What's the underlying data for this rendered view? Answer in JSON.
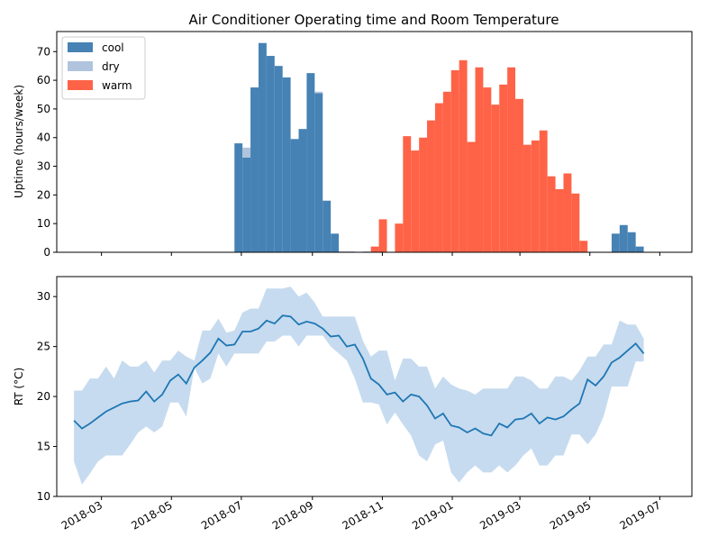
{
  "title": "Air Conditioner Operating time and Room Temperature",
  "x_ticks": [
    {
      "label": "2018-03",
      "date": "2018-03-01"
    },
    {
      "label": "2018-05",
      "date": "2018-05-01"
    },
    {
      "label": "2018-07",
      "date": "2018-07-01"
    },
    {
      "label": "2018-09",
      "date": "2018-09-01"
    },
    {
      "label": "2018-11",
      "date": "2018-11-01"
    },
    {
      "label": "2019-01",
      "date": "2019-01-01"
    },
    {
      "label": "2019-03",
      "date": "2019-03-01"
    },
    {
      "label": "2019-05",
      "date": "2019-05-01"
    },
    {
      "label": "2019-07",
      "date": "2019-07-01"
    }
  ],
  "colors": {
    "cool": "#4682b4",
    "dry": "#b0c4de",
    "warm": "#ff6347",
    "rt_line": "#1f77b4",
    "rt_band": "#c6dbef"
  },
  "chart_data": [
    {
      "type": "bar",
      "ylabel": "Uptime (hours/week)",
      "ylim": [
        0,
        77
      ],
      "yticks": [
        0,
        10,
        20,
        30,
        40,
        50,
        60,
        70
      ],
      "xlim": [
        "2018-01-21",
        "2019-07-29"
      ],
      "legend": {
        "position": "top-left",
        "entries": [
          "cool",
          "dry",
          "warm"
        ]
      },
      "week_starts": [
        "2018-06-25",
        "2018-07-02",
        "2018-07-09",
        "2018-07-16",
        "2018-07-23",
        "2018-07-30",
        "2018-08-06",
        "2018-08-13",
        "2018-08-20",
        "2018-08-27",
        "2018-09-03",
        "2018-09-10",
        "2018-09-17",
        "2018-09-24",
        "2018-10-01",
        "2018-10-08",
        "2018-10-15",
        "2018-10-22",
        "2018-10-29",
        "2018-11-05",
        "2018-11-12",
        "2018-11-19",
        "2018-11-26",
        "2018-12-03",
        "2018-12-10",
        "2018-12-17",
        "2018-12-24",
        "2018-12-31",
        "2019-01-07",
        "2019-01-14",
        "2019-01-21",
        "2019-01-28",
        "2019-02-04",
        "2019-02-11",
        "2019-02-18",
        "2019-02-25",
        "2019-03-04",
        "2019-03-11",
        "2019-03-18",
        "2019-03-25",
        "2019-04-01",
        "2019-04-08",
        "2019-04-15",
        "2019-04-22",
        "2019-04-29",
        "2019-05-06",
        "2019-05-13",
        "2019-05-20",
        "2019-05-27",
        "2019-06-03",
        "2019-06-10"
      ],
      "series": [
        {
          "name": "cool",
          "values": [
            38,
            33,
            57.5,
            73,
            68.5,
            65,
            61,
            39.5,
            43,
            62.5,
            55.5,
            18,
            6.5,
            0,
            0,
            0,
            0,
            0,
            0,
            0,
            0,
            0,
            0,
            0,
            0,
            0,
            0,
            0,
            0,
            0,
            0,
            0,
            0,
            0,
            0,
            0,
            0,
            0,
            0,
            0,
            0,
            0,
            0,
            0,
            0,
            0,
            0,
            6.5,
            9.5,
            7,
            2
          ]
        },
        {
          "name": "dry",
          "values": [
            0,
            3.5,
            0,
            0,
            0,
            0,
            0,
            0,
            0,
            0,
            0.5,
            0,
            0,
            0.3,
            0.3,
            0,
            0.3,
            0,
            0,
            0,
            0,
            0,
            0,
            0,
            0,
            0,
            0,
            0,
            0,
            0,
            0,
            0,
            0,
            0,
            0,
            0,
            0,
            0,
            0,
            0,
            0,
            0,
            0,
            0,
            0,
            0,
            0,
            0,
            0,
            0,
            0
          ]
        },
        {
          "name": "warm",
          "values": [
            0,
            0,
            0,
            0,
            0,
            0,
            0,
            0,
            0,
            0,
            0,
            0,
            0,
            0,
            0,
            0,
            0,
            2,
            11.5,
            0,
            10,
            40.5,
            35.5,
            40,
            46,
            52,
            56,
            63.5,
            67,
            38.5,
            64.5,
            57.5,
            51.5,
            58.5,
            64.5,
            53.5,
            37.5,
            39,
            42.5,
            26.5,
            22,
            27.5,
            20.5,
            4,
            0,
            0,
            0,
            0,
            0,
            0,
            0
          ]
        }
      ]
    },
    {
      "type": "line",
      "ylabel": "RT (°C)",
      "ylim": [
        10,
        32
      ],
      "yticks": [
        10,
        15,
        20,
        25,
        30
      ],
      "xlim": [
        "2018-01-21",
        "2019-07-29"
      ],
      "x": [
        "2018-02-05",
        "2018-02-12",
        "2018-02-19",
        "2018-02-26",
        "2018-03-05",
        "2018-03-12",
        "2018-03-19",
        "2018-03-26",
        "2018-04-02",
        "2018-04-09",
        "2018-04-16",
        "2018-04-23",
        "2018-04-30",
        "2018-05-07",
        "2018-05-14",
        "2018-05-21",
        "2018-05-28",
        "2018-06-04",
        "2018-06-11",
        "2018-06-18",
        "2018-06-25",
        "2018-07-02",
        "2018-07-09",
        "2018-07-16",
        "2018-07-23",
        "2018-07-30",
        "2018-08-06",
        "2018-08-13",
        "2018-08-20",
        "2018-08-27",
        "2018-09-03",
        "2018-09-10",
        "2018-09-17",
        "2018-09-24",
        "2018-10-01",
        "2018-10-08",
        "2018-10-15",
        "2018-10-22",
        "2018-10-29",
        "2018-11-05",
        "2018-11-12",
        "2018-11-19",
        "2018-11-26",
        "2018-12-03",
        "2018-12-10",
        "2018-12-17",
        "2018-12-24",
        "2018-12-31",
        "2019-01-07",
        "2019-01-14",
        "2019-01-21",
        "2019-01-28",
        "2019-02-04",
        "2019-02-11",
        "2019-02-18",
        "2019-02-25",
        "2019-03-04",
        "2019-03-11",
        "2019-03-18",
        "2019-03-25",
        "2019-04-01",
        "2019-04-08",
        "2019-04-15",
        "2019-04-22",
        "2019-04-29",
        "2019-05-06",
        "2019-05-13",
        "2019-05-20",
        "2019-05-27",
        "2019-06-03",
        "2019-06-10",
        "2019-06-17"
      ],
      "series": [
        {
          "name": "mean",
          "values": [
            17.6,
            16.8,
            17.3,
            17.9,
            18.5,
            18.9,
            19.3,
            19.5,
            19.6,
            20.5,
            19.5,
            20.2,
            21.6,
            22.2,
            21.3,
            22.9,
            23.6,
            24.4,
            25.8,
            25.1,
            25.2,
            26.5,
            26.5,
            26.8,
            27.6,
            27.3,
            28.1,
            28.0,
            27.2,
            27.5,
            27.3,
            26.8,
            26.0,
            26.1,
            25.0,
            25.2,
            23.8,
            21.8,
            21.2,
            20.2,
            20.4,
            19.5,
            20.2,
            20.0,
            19.1,
            17.8,
            18.3,
            17.1,
            16.9,
            16.4,
            16.8,
            16.3,
            16.1,
            17.3,
            16.9,
            17.7,
            17.8,
            18.3,
            17.3,
            17.9,
            17.7,
            18.0,
            18.7,
            19.3,
            21.7,
            21.1,
            22.0,
            23.4,
            23.9,
            24.6,
            25.3,
            24.3
          ]
        },
        {
          "name": "max",
          "values": [
            20.6,
            20.6,
            21.8,
            21.8,
            23.0,
            21.8,
            23.6,
            23.0,
            23.0,
            23.6,
            22.4,
            23.6,
            23.6,
            24.6,
            24.0,
            23.6,
            26.6,
            26.6,
            27.8,
            26.4,
            26.6,
            28.4,
            28.8,
            28.8,
            30.8,
            30.8,
            30.8,
            31.0,
            30.0,
            30.4,
            29.4,
            28.0,
            28.0,
            28.0,
            28.0,
            28.0,
            25.6,
            24.0,
            24.6,
            24.6,
            21.6,
            23.8,
            23.8,
            23.0,
            23.0,
            20.8,
            22.0,
            21.2,
            20.8,
            20.6,
            20.2,
            20.8,
            20.8,
            20.8,
            20.8,
            22.0,
            22.0,
            21.6,
            20.8,
            20.8,
            22.0,
            22.0,
            21.6,
            22.6,
            24.0,
            24.0,
            25.2,
            25.2,
            27.6,
            27.2,
            27.2,
            25.8
          ]
        },
        {
          "name": "min",
          "values": [
            13.5,
            11.2,
            12.3,
            13.5,
            14.1,
            14.1,
            14.1,
            15.2,
            16.4,
            17.0,
            16.4,
            17.0,
            19.4,
            19.4,
            18.0,
            22.9,
            21.3,
            21.8,
            24.3,
            23.0,
            24.3,
            24.3,
            24.3,
            24.3,
            25.5,
            25.5,
            26.1,
            26.1,
            25.0,
            26.1,
            26.1,
            26.1,
            25.0,
            24.3,
            23.6,
            21.8,
            19.4,
            19.4,
            19.2,
            17.2,
            18.4,
            17.2,
            16.1,
            14.1,
            13.5,
            15.2,
            15.6,
            12.4,
            11.4,
            12.4,
            13.1,
            12.4,
            12.4,
            13.1,
            12.4,
            13.1,
            14.1,
            14.8,
            13.1,
            13.1,
            14.1,
            14.1,
            16.2,
            16.2,
            15.2,
            16.2,
            18.0,
            21.0,
            21.0,
            21.0,
            23.5,
            23.5
          ]
        }
      ]
    }
  ]
}
